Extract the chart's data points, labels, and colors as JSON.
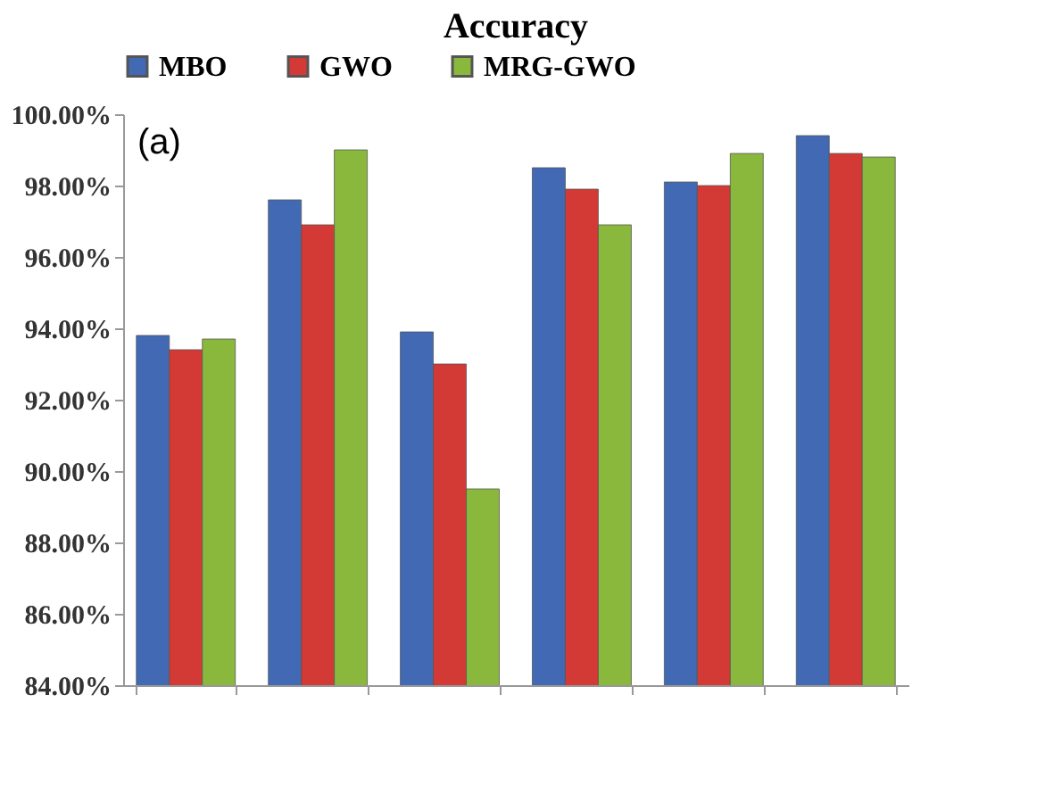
{
  "chart_data": {
    "type": "bar",
    "title": "Accuracy",
    "annotations": [
      "(a)"
    ],
    "categories": [
      null,
      null,
      null,
      null,
      null,
      null
    ],
    "series": [
      {
        "name": "MBO",
        "color": "#4169b4",
        "values": [
          93.8,
          97.6,
          93.9,
          98.5,
          98.1,
          99.4
        ]
      },
      {
        "name": "GWO",
        "color": "#d33a35",
        "values": [
          93.4,
          96.9,
          93.0,
          97.9,
          98.0,
          98.9
        ]
      },
      {
        "name": "MRG-GWO",
        "color": "#8ab83c",
        "values": [
          93.7,
          99.0,
          89.5,
          96.9,
          98.9,
          98.8
        ]
      }
    ],
    "ylim": [
      84,
      100
    ],
    "yticks": [
      {
        "value": 84,
        "label": "84.00%"
      },
      {
        "value": 86,
        "label": "86.00%"
      },
      {
        "value": 88,
        "label": "88.00%"
      },
      {
        "value": 90,
        "label": "90.00%"
      },
      {
        "value": 92,
        "label": "92.00%"
      },
      {
        "value": 94,
        "label": "94.00%"
      },
      {
        "value": 96,
        "label": "96.00%"
      },
      {
        "value": 98,
        "label": "98.00%"
      },
      {
        "value": 100,
        "label": "100.00%"
      }
    ],
    "tick_labels": "y",
    "grid": false,
    "legend": "top"
  }
}
